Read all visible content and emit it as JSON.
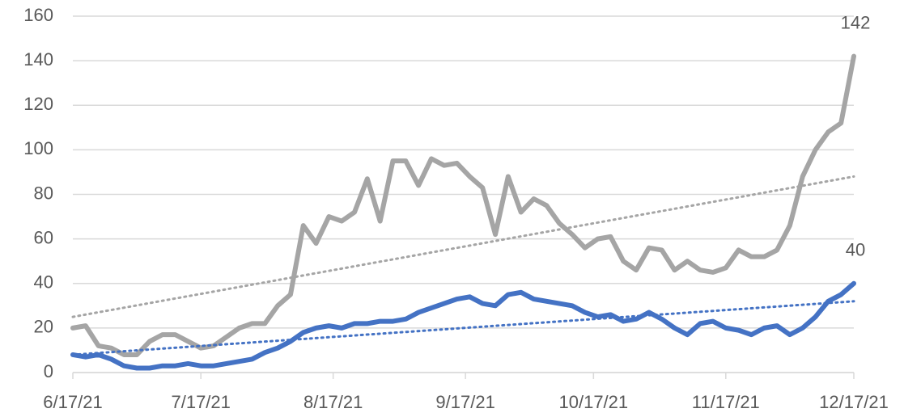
{
  "chart_data": {
    "type": "line",
    "xlim": [
      "6/17/21",
      "12/17/21"
    ],
    "xticks": [
      "6/17/21",
      "7/17/21",
      "8/17/21",
      "9/17/21",
      "10/17/21",
      "11/17/21",
      "12/17/21"
    ],
    "ylim": [
      0,
      160
    ],
    "yticks": [
      0,
      20,
      40,
      60,
      80,
      100,
      120,
      140,
      160
    ],
    "grid": true,
    "series": [
      {
        "color": "#a5a5a5",
        "label_last": true,
        "x": [
          "6/17/21",
          "6/20/21",
          "6/23/21",
          "6/26/21",
          "6/29/21",
          "7/2/21",
          "7/5/21",
          "7/8/21",
          "7/11/21",
          "7/14/21",
          "7/17/21",
          "7/20/21",
          "7/23/21",
          "7/26/21",
          "7/29/21",
          "8/1/21",
          "8/4/21",
          "8/7/21",
          "8/10/21",
          "8/13/21",
          "8/16/21",
          "8/19/21",
          "8/22/21",
          "8/25/21",
          "8/28/21",
          "8/31/21",
          "9/3/21",
          "9/6/21",
          "9/9/21",
          "9/12/21",
          "9/15/21",
          "9/18/21",
          "9/21/21",
          "9/24/21",
          "9/27/21",
          "9/30/21",
          "10/3/21",
          "10/6/21",
          "10/9/21",
          "10/12/21",
          "10/15/21",
          "10/18/21",
          "10/21/21",
          "10/24/21",
          "10/27/21",
          "10/30/21",
          "11/2/21",
          "11/5/21",
          "11/8/21",
          "11/11/21",
          "11/14/21",
          "11/17/21",
          "11/20/21",
          "11/23/21",
          "11/26/21",
          "11/29/21",
          "12/2/21",
          "12/5/21",
          "12/8/21",
          "12/11/21",
          "12/14/21",
          "12/17/21"
        ],
        "values": [
          20,
          21,
          12,
          11,
          8,
          8,
          14,
          17,
          17,
          14,
          11,
          12,
          16,
          20,
          22,
          22,
          30,
          35,
          66,
          58,
          70,
          68,
          72,
          87,
          68,
          95,
          95,
          84,
          96,
          93,
          94,
          88,
          83,
          62,
          88,
          72,
          78,
          75,
          67,
          62,
          56,
          60,
          61,
          50,
          46,
          56,
          55,
          46,
          50,
          46,
          45,
          47,
          55,
          52,
          52,
          55,
          66,
          88,
          100,
          108,
          112,
          142
        ]
      },
      {
        "color": "#4472c4",
        "label_last": true,
        "x": [
          "6/17/21",
          "6/20/21",
          "6/23/21",
          "6/26/21",
          "6/29/21",
          "7/2/21",
          "7/5/21",
          "7/8/21",
          "7/11/21",
          "7/14/21",
          "7/17/21",
          "7/20/21",
          "7/23/21",
          "7/26/21",
          "7/29/21",
          "8/1/21",
          "8/4/21",
          "8/7/21",
          "8/10/21",
          "8/13/21",
          "8/16/21",
          "8/19/21",
          "8/22/21",
          "8/25/21",
          "8/28/21",
          "8/31/21",
          "9/3/21",
          "9/6/21",
          "9/9/21",
          "9/12/21",
          "9/15/21",
          "9/18/21",
          "9/21/21",
          "9/24/21",
          "9/27/21",
          "9/30/21",
          "10/3/21",
          "10/6/21",
          "10/9/21",
          "10/12/21",
          "10/15/21",
          "10/18/21",
          "10/21/21",
          "10/24/21",
          "10/27/21",
          "10/30/21",
          "11/2/21",
          "11/5/21",
          "11/8/21",
          "11/11/21",
          "11/14/21",
          "11/17/21",
          "11/20/21",
          "11/23/21",
          "11/26/21",
          "11/29/21",
          "12/2/21",
          "12/5/21",
          "12/8/21",
          "12/11/21",
          "12/14/21",
          "12/17/21"
        ],
        "values": [
          8,
          7,
          8,
          6,
          3,
          2,
          2,
          3,
          3,
          4,
          3,
          3,
          4,
          5,
          6,
          9,
          11,
          14,
          18,
          20,
          21,
          20,
          22,
          22,
          23,
          23,
          24,
          27,
          29,
          31,
          33,
          34,
          31,
          30,
          35,
          36,
          33,
          32,
          31,
          30,
          27,
          25,
          26,
          23,
          24,
          27,
          24,
          20,
          17,
          22,
          23,
          20,
          19,
          17,
          20,
          21,
          17,
          20,
          25,
          32,
          35,
          40
        ]
      },
      {
        "color": "#a5a5a5",
        "line_style": "dotted",
        "x": [
          "6/17/21",
          "12/17/21"
        ],
        "values": [
          25,
          88
        ]
      },
      {
        "color": "#4472c4",
        "line_style": "dotted",
        "x": [
          "6/17/21",
          "12/17/21"
        ],
        "values": [
          8,
          32
        ]
      }
    ]
  }
}
